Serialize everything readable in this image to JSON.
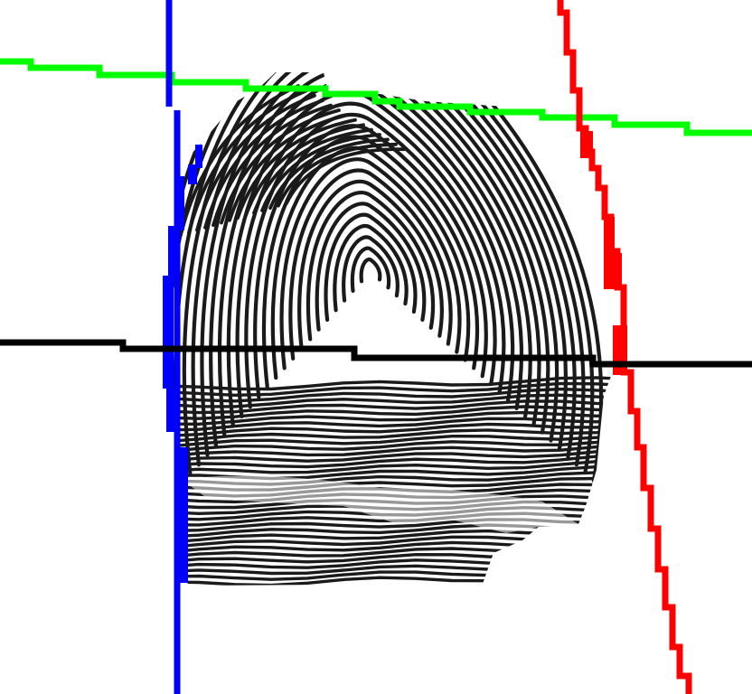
{
  "image": {
    "subject": "fingerprint",
    "background_color": "#ffffff",
    "ridge_color": "#1a1a1a",
    "ridge_pattern": "loop"
  },
  "overlays": {
    "colors": {
      "green": "#00ff00",
      "blue": "#0000ff",
      "red": "#ff0000",
      "black": "#000000"
    }
  }
}
